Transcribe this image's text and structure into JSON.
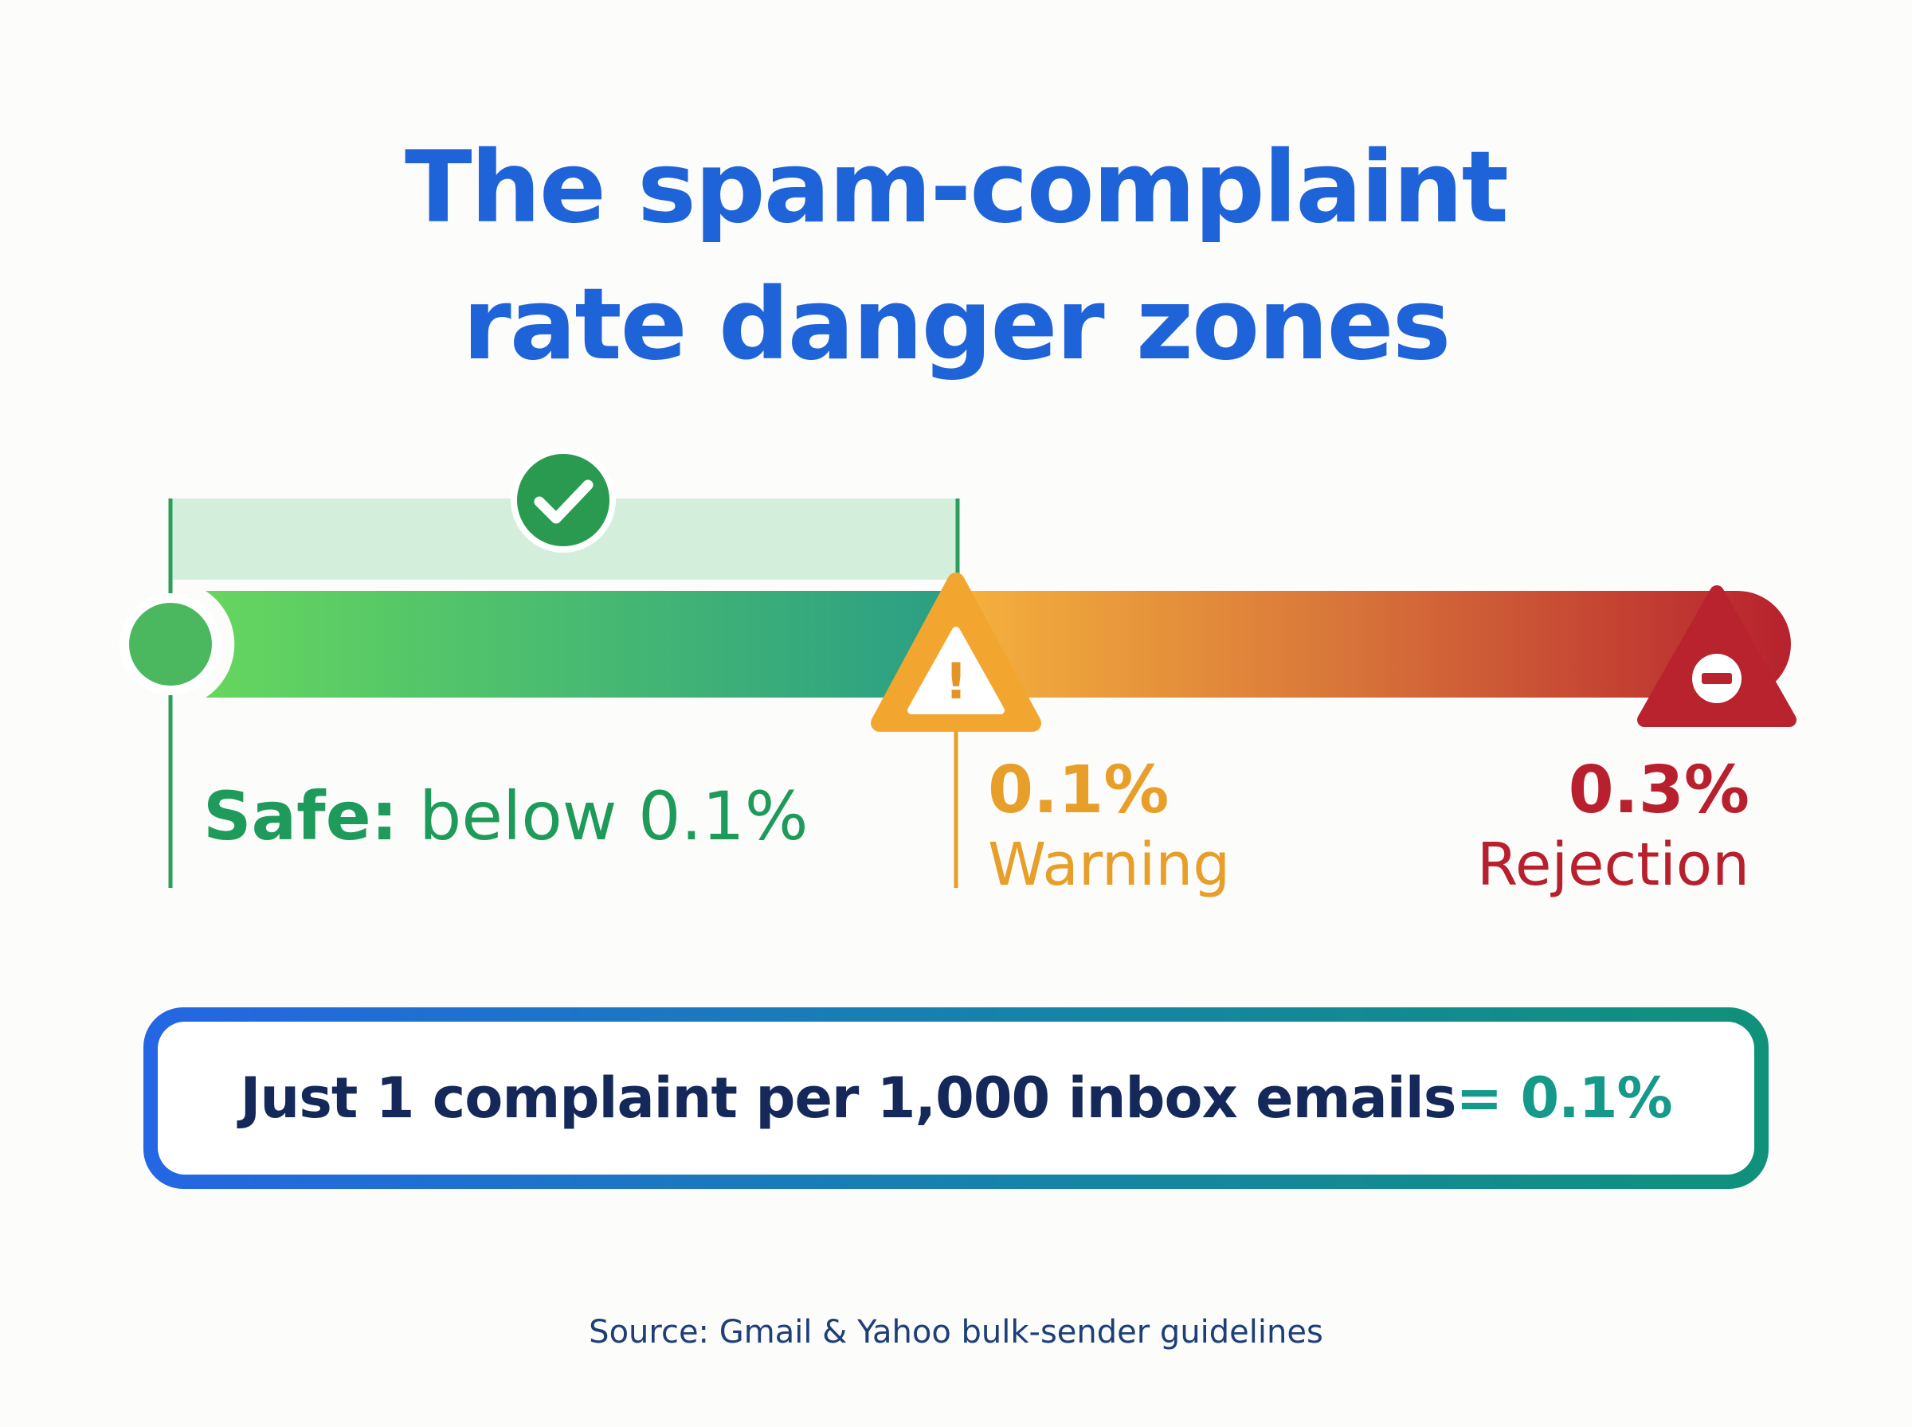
{
  "title": {
    "line1": "The spam-complaint",
    "line2": "rate danger zones"
  },
  "zones": {
    "safe": {
      "prefix": "Safe:",
      "text": " below 0.1%",
      "color": "#1e9b5a",
      "upper_limit_percent": 0.1
    },
    "warning": {
      "value": "0.1%",
      "label": "Warning",
      "color": "#e89f2a",
      "threshold_percent": 0.1
    },
    "rejection": {
      "value": "0.3%",
      "label": "Rejection",
      "color": "#b8202d",
      "threshold_percent": 0.3
    }
  },
  "icons": {
    "safe": "check-circle-icon",
    "warning": "warning-triangle-icon",
    "rejection": "no-entry-triangle-icon",
    "warning_glyph": "!"
  },
  "callout": {
    "text": "Just 1 complaint per 1,000 inbox emails",
    "result": " = 0.1%"
  },
  "source": "Source: Gmail & Yahoo bulk-sender guidelines",
  "colors": {
    "title": "#1f63d8",
    "green_start": "#66d65e",
    "green_end": "#2a9e84",
    "orange": "#f5b23c",
    "red": "#b7222e",
    "callout_border_start": "#2466e4",
    "callout_border_end": "#10917a"
  }
}
